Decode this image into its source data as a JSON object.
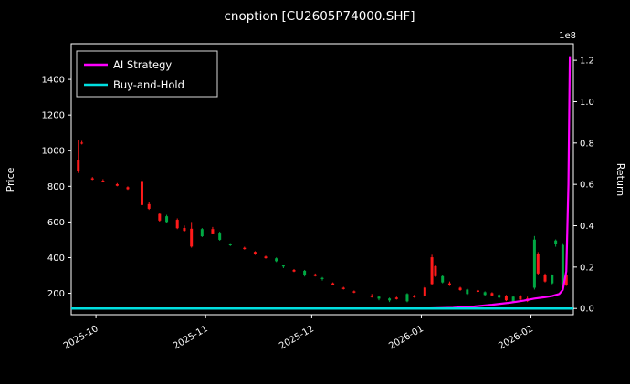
{
  "title": "cnoption [CU2605P74000.SHF]",
  "colors": {
    "background": "#000000",
    "text": "#ffffff",
    "spine": "#ffffff",
    "up_candle": "#00a843",
    "down_candle": "#ff1a1a",
    "ai_line": "#ff00ff",
    "bh_line": "#00dfe0"
  },
  "legend": {
    "items": [
      {
        "label": "AI Strategy",
        "color": "#ff00ff"
      },
      {
        "label": "Buy-and-Hold",
        "color": "#00dfe0"
      }
    ]
  },
  "axes": {
    "left_label": "Price",
    "right_label": "Return",
    "right_multiplier": "1e8",
    "price_ticks": [
      200,
      400,
      600,
      800,
      1000,
      1200,
      1400
    ],
    "return_ticks": [
      "0.0",
      "0.2",
      "0.4",
      "0.6",
      "0.8",
      "1.0",
      "1.2"
    ],
    "x_ticks": [
      {
        "day": 7,
        "label": "2025-10"
      },
      {
        "day": 38,
        "label": "2025-11"
      },
      {
        "day": 68,
        "label": "2025-12"
      },
      {
        "day": 99,
        "label": "2026-01"
      },
      {
        "day": 130,
        "label": "2026-02"
      }
    ]
  },
  "chart_data": {
    "type": "candlestick+line",
    "title": "cnoption [CU2605P74000.SHF]",
    "x_domain_days": [
      0,
      142
    ],
    "x_day_zero": "2025-09-24",
    "price_ylim": [
      80,
      1600
    ],
    "return_ylim_1e8": [
      -0.03,
      1.28
    ],
    "grid": false,
    "legend_position": "upper-left",
    "candles_format": [
      "day",
      "open",
      "high",
      "low",
      "close",
      "color(r=red,g=green)"
    ],
    "candles": [
      [
        2,
        950,
        1060,
        875,
        885,
        "r"
      ],
      [
        3,
        1045,
        1055,
        1035,
        1040,
        "r"
      ],
      [
        6,
        845,
        852,
        835,
        838,
        "r"
      ],
      [
        9,
        832,
        840,
        822,
        825,
        "r"
      ],
      [
        13,
        812,
        818,
        800,
        803,
        "r"
      ],
      [
        16,
        795,
        800,
        780,
        784,
        "r"
      ],
      [
        20,
        830,
        842,
        690,
        695,
        "r"
      ],
      [
        22,
        700,
        710,
        668,
        674,
        "r"
      ],
      [
        25,
        645,
        652,
        602,
        608,
        "r"
      ],
      [
        27,
        600,
        640,
        592,
        632,
        "g"
      ],
      [
        30,
        612,
        620,
        560,
        565,
        "r"
      ],
      [
        32,
        566,
        580,
        546,
        550,
        "r"
      ],
      [
        34,
        562,
        600,
        456,
        462,
        "r"
      ],
      [
        37,
        520,
        566,
        515,
        560,
        "g"
      ],
      [
        40,
        560,
        572,
        532,
        536,
        "r"
      ],
      [
        42,
        500,
        546,
        495,
        540,
        "g"
      ],
      [
        45,
        474,
        481,
        465,
        470,
        "g"
      ],
      [
        49,
        455,
        461,
        445,
        448,
        "r"
      ],
      [
        52,
        432,
        436,
        415,
        418,
        "r"
      ],
      [
        55,
        406,
        411,
        394,
        397,
        "r"
      ],
      [
        58,
        380,
        401,
        375,
        396,
        "g"
      ],
      [
        60,
        350,
        361,
        341,
        356,
        "g"
      ],
      [
        63,
        331,
        336,
        319,
        322,
        "r"
      ],
      [
        66,
        300,
        331,
        294,
        326,
        "g"
      ],
      [
        69,
        306,
        311,
        294,
        297,
        "r"
      ],
      [
        71,
        280,
        291,
        271,
        286,
        "g"
      ],
      [
        74,
        256,
        261,
        245,
        248,
        "r"
      ],
      [
        77,
        231,
        236,
        221,
        224,
        "r"
      ],
      [
        80,
        211,
        216,
        201,
        204,
        "r"
      ],
      [
        85,
        186,
        196,
        176,
        179,
        "r"
      ],
      [
        87,
        170,
        186,
        161,
        181,
        "g"
      ],
      [
        90,
        160,
        176,
        151,
        171,
        "g"
      ],
      [
        92,
        176,
        181,
        165,
        168,
        "r"
      ],
      [
        95,
        155,
        201,
        150,
        196,
        "g"
      ],
      [
        97,
        186,
        191,
        175,
        178,
        "r"
      ],
      [
        100,
        232,
        241,
        181,
        186,
        "r"
      ],
      [
        102,
        402,
        416,
        246,
        252,
        "r"
      ],
      [
        103,
        352,
        361,
        291,
        296,
        "r"
      ],
      [
        105,
        261,
        301,
        256,
        296,
        "g"
      ],
      [
        107,
        256,
        266,
        241,
        245,
        "r"
      ],
      [
        110,
        231,
        236,
        214,
        218,
        "r"
      ],
      [
        112,
        196,
        226,
        191,
        221,
        "g"
      ],
      [
        115,
        216,
        221,
        204,
        208,
        "r"
      ],
      [
        117,
        191,
        211,
        186,
        206,
        "g"
      ],
      [
        119,
        201,
        206,
        184,
        188,
        "r"
      ],
      [
        121,
        176,
        196,
        171,
        191,
        "g"
      ],
      [
        123,
        186,
        191,
        156,
        161,
        "r"
      ],
      [
        125,
        151,
        186,
        146,
        181,
        "g"
      ],
      [
        127,
        186,
        191,
        161,
        165,
        "r"
      ],
      [
        129,
        171,
        181,
        151,
        156,
        "r"
      ],
      [
        131,
        231,
        521,
        221,
        501,
        "g"
      ],
      [
        132,
        421,
        431,
        301,
        311,
        "r"
      ],
      [
        134,
        301,
        311,
        261,
        266,
        "r"
      ],
      [
        136,
        256,
        306,
        251,
        301,
        "g"
      ],
      [
        137,
        478,
        502,
        461,
        496,
        "g"
      ],
      [
        139,
        251,
        481,
        246,
        471,
        "g"
      ],
      [
        140,
        301,
        311,
        241,
        246,
        "r"
      ]
    ],
    "series": [
      {
        "name": "AI Strategy",
        "axis": "return",
        "color": "#ff00ff",
        "width": 2.2,
        "points_1e8": [
          [
            0,
            0.0
          ],
          [
            10,
            0.0
          ],
          [
            20,
            0.0
          ],
          [
            30,
            0.0
          ],
          [
            40,
            0.0
          ],
          [
            50,
            0.0
          ],
          [
            60,
            0.0
          ],
          [
            70,
            0.0
          ],
          [
            80,
            0.0
          ],
          [
            90,
            0.0
          ],
          [
            100,
            0.0
          ],
          [
            108,
            0.003
          ],
          [
            114,
            0.01
          ],
          [
            119,
            0.018
          ],
          [
            124,
            0.028
          ],
          [
            128,
            0.038
          ],
          [
            131,
            0.048
          ],
          [
            134,
            0.055
          ],
          [
            136,
            0.06
          ],
          [
            138,
            0.07
          ],
          [
            139,
            0.09
          ],
          [
            140,
            0.18
          ],
          [
            140.6,
            0.6
          ],
          [
            141,
            1.22
          ]
        ]
      },
      {
        "name": "Buy-and-Hold",
        "axis": "return",
        "color": "#00dfe0",
        "width": 2.5,
        "points_1e8": [
          [
            0,
            0.0
          ],
          [
            142,
            0.0
          ]
        ]
      }
    ]
  }
}
